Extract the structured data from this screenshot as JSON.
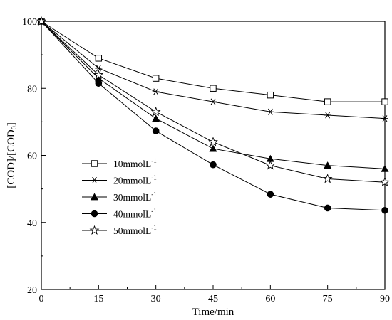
{
  "chart_data": {
    "type": "line",
    "xlabel": "Time/min",
    "ylabel": {
      "main_a": "[COD]/[COD",
      "sub_a": "0",
      "main_b": "]"
    },
    "x": [
      0,
      15,
      30,
      45,
      60,
      75,
      90
    ],
    "x_ticks": [
      "0",
      "15",
      "30",
      "45",
      "60",
      "75",
      "90"
    ],
    "xlim": [
      0,
      90
    ],
    "y_ticks": [
      "20",
      "40",
      "60",
      "80",
      "100"
    ],
    "ylim": [
      20,
      100
    ],
    "grid": false,
    "legend_position": "center-left",
    "series": [
      {
        "name": "10mmolL",
        "unit_exp": "-1",
        "marker": "open-square",
        "values": [
          100,
          89,
          83,
          80,
          78,
          76,
          76
        ]
      },
      {
        "name": "20mmolL",
        "unit_exp": "-1",
        "marker": "asterisk",
        "values": [
          100,
          86,
          79,
          76,
          73,
          72,
          71
        ]
      },
      {
        "name": "30mmolL",
        "unit_exp": "-1",
        "marker": "filled-triangle",
        "values": [
          100,
          83,
          71,
          62,
          59,
          57,
          56
        ]
      },
      {
        "name": "40mmolL",
        "unit_exp": "-1",
        "marker": "filled-circle",
        "values": [
          100,
          81.5,
          67.3,
          57.2,
          48.4,
          44.3,
          43.6
        ]
      },
      {
        "name": "50mmolL",
        "unit_exp": "-1",
        "marker": "open-star",
        "values": [
          100,
          84,
          73,
          64,
          57,
          53,
          52
        ]
      }
    ],
    "line_color": "#000000"
  }
}
